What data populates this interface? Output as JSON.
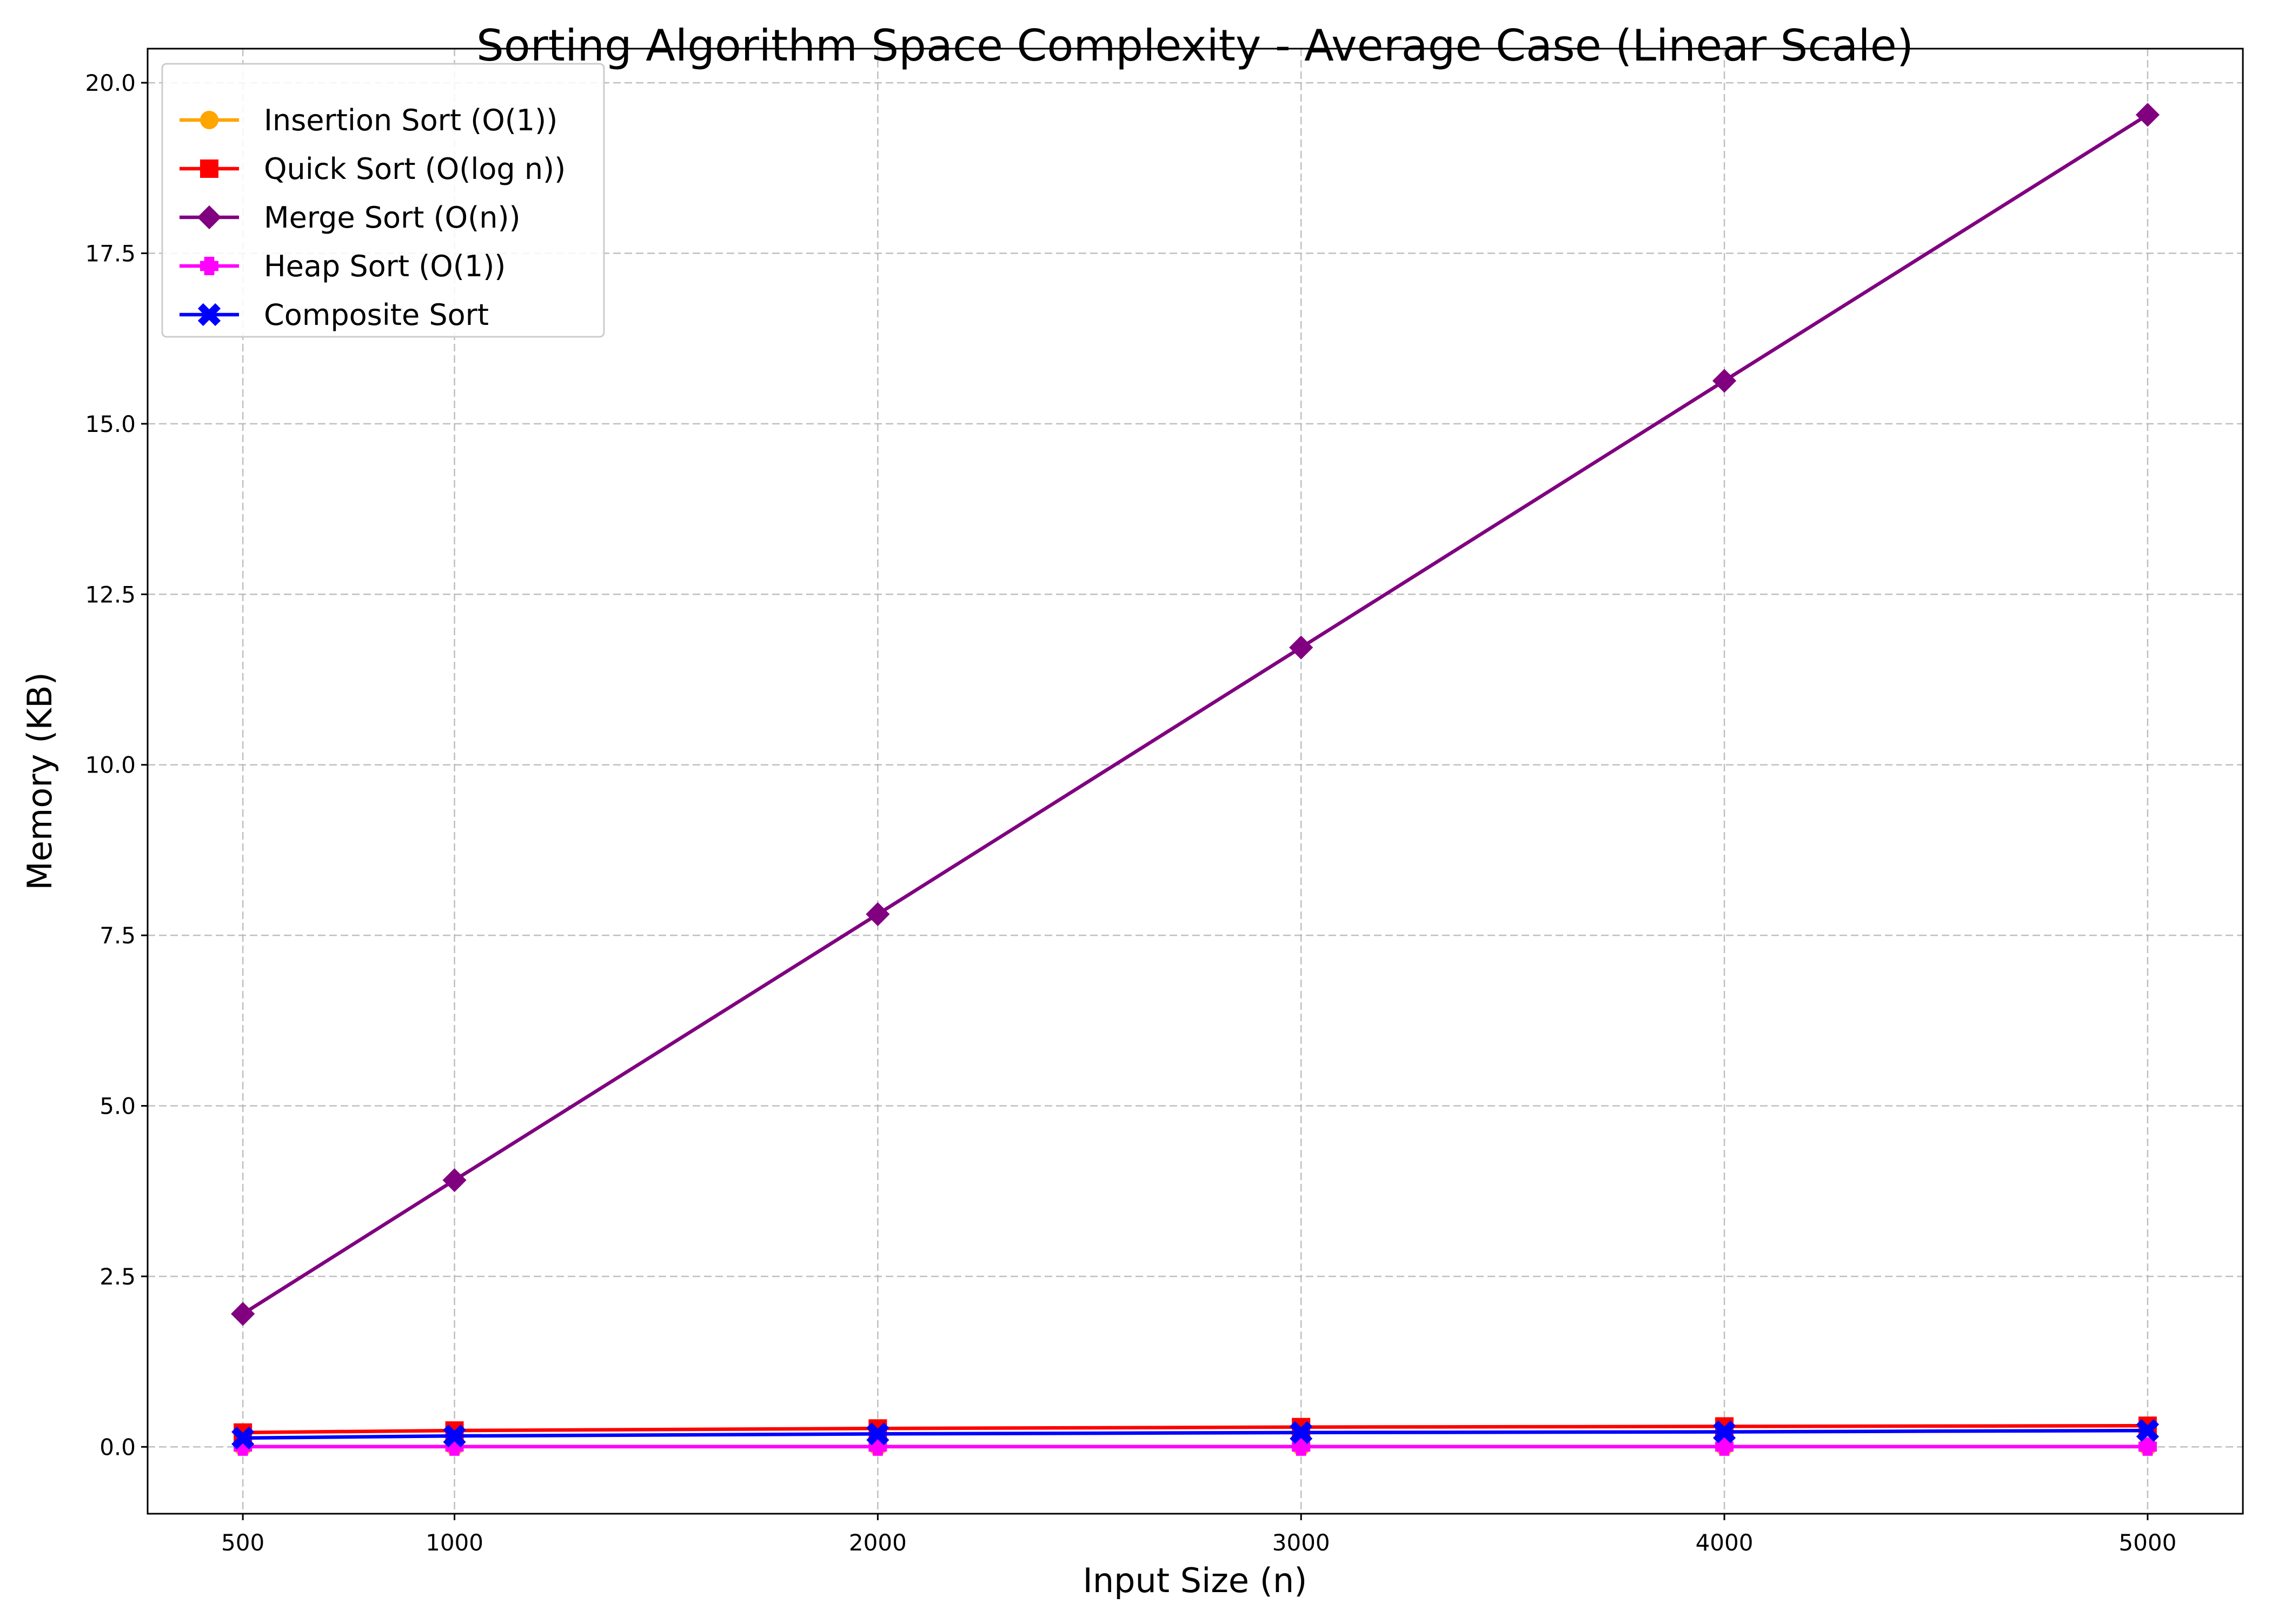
{
  "chart_data": {
    "type": "line",
    "title": "Sorting Algorithm Space Complexity - Average Case (Linear Scale)",
    "xlabel": "Input Size (n)",
    "ylabel": "Memory (KB)",
    "x": [
      500,
      1000,
      2000,
      3000,
      4000,
      5000
    ],
    "x_ticks": [
      "500",
      "1000",
      "2000",
      "3000",
      "4000",
      "5000"
    ],
    "y_ticks": [
      "0.0",
      "2.5",
      "5.0",
      "7.5",
      "10.0",
      "12.5",
      "15.0",
      "17.5",
      "20.0"
    ],
    "xlim": [
      275,
      5225
    ],
    "ylim": [
      -0.98,
      20.5
    ],
    "grid": true,
    "grid_style": "dashed",
    "legend_position": "top-left",
    "series": [
      {
        "name": "Insertion Sort (O(1))",
        "color": "#ffa500",
        "marker": "circle",
        "values": [
          0.0039,
          0.0039,
          0.0039,
          0.0039,
          0.0039,
          0.0039
        ]
      },
      {
        "name": "Quick Sort (O(log n))",
        "color": "#ff0000",
        "marker": "square",
        "values": [
          0.21,
          0.24,
          0.27,
          0.29,
          0.3,
          0.31
        ]
      },
      {
        "name": "Merge Sort (O(n))",
        "color": "#800080",
        "marker": "diamond",
        "values": [
          1.95,
          3.91,
          7.81,
          11.72,
          15.63,
          19.53
        ]
      },
      {
        "name": "Heap Sort (O(1))",
        "color": "#ff00ff",
        "marker": "plus",
        "values": [
          0.0039,
          0.0039,
          0.0039,
          0.0039,
          0.0039,
          0.0039
        ]
      },
      {
        "name": "Composite Sort",
        "color": "#0000ff",
        "marker": "x",
        "values": [
          0.13,
          0.16,
          0.19,
          0.21,
          0.22,
          0.24
        ]
      }
    ]
  }
}
